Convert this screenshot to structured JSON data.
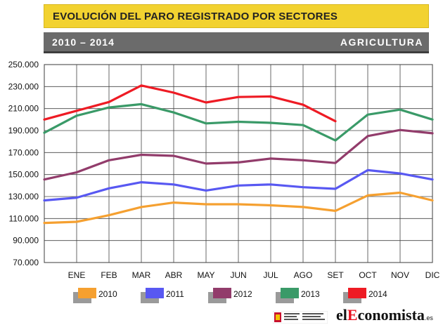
{
  "header": {
    "title": "EVOLUCIÓN DEL PARO REGISTRADO POR SECTORES",
    "period": "2010 – 2014",
    "sector": "AGRICULTURA"
  },
  "brand": {
    "logo_prefix": "el",
    "logo_highlight": "E",
    "logo_suffix": "conomista",
    "logo_domain": ".es"
  },
  "chart_data": {
    "type": "line",
    "categories": [
      "",
      "ENE",
      "FEB",
      "MAR",
      "ABR",
      "MAY",
      "JUN",
      "JUL",
      "AGO",
      "SET",
      "OCT",
      "NOV",
      "DIC"
    ],
    "y_ticks": [
      "70.000",
      "90.000",
      "110.000",
      "130.000",
      "150.000",
      "170.000",
      "190.000",
      "210.000",
      "230.000",
      "250.000"
    ],
    "ylim": [
      70000,
      250000
    ],
    "grid": true,
    "legend_position": "bottom",
    "series": [
      {
        "name": "2010",
        "color": "#f5a030",
        "values": [
          106000,
          107000,
          113000,
          120500,
          124500,
          123000,
          123000,
          122000,
          120500,
          117000,
          131000,
          133500,
          126500
        ]
      },
      {
        "name": "2011",
        "color": "#5858f2",
        "values": [
          126500,
          129000,
          137500,
          143000,
          141000,
          135500,
          140000,
          141000,
          138500,
          137000,
          154000,
          151000,
          145500
        ]
      },
      {
        "name": "2012",
        "color": "#923c6b",
        "values": [
          145500,
          152000,
          163000,
          168000,
          167000,
          160000,
          161000,
          164500,
          163000,
          160500,
          185000,
          190500,
          187500
        ]
      },
      {
        "name": "2013",
        "color": "#3a9a68",
        "values": [
          188000,
          203500,
          211000,
          214000,
          206500,
          196500,
          198000,
          197000,
          195000,
          181000,
          204500,
          209000,
          200000
        ]
      },
      {
        "name": "2014",
        "color": "#ee1b24",
        "values": [
          200000,
          208000,
          216000,
          231000,
          224500,
          215500,
          220500,
          221000,
          213500,
          198500,
          null,
          null,
          null
        ]
      }
    ]
  }
}
